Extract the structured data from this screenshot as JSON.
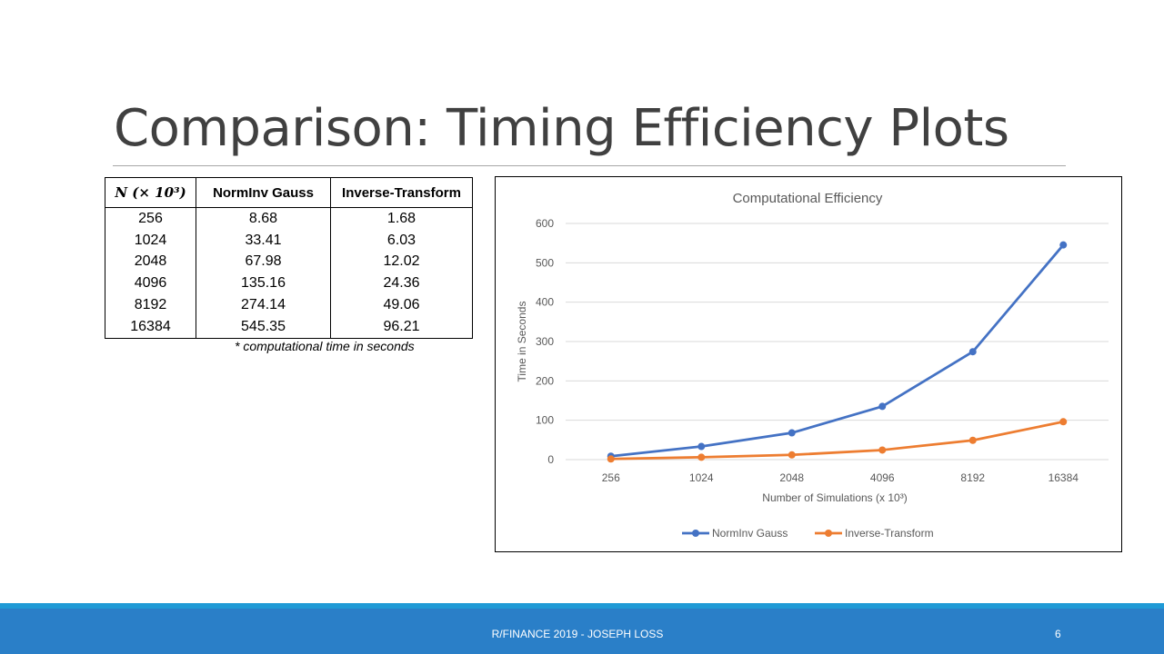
{
  "slide": {
    "title": "Comparison: Timing Efficiency Plots",
    "footnote": "* computational time in seconds",
    "footer_text": "R/FINANCE 2019 - JOSEPH LOSS",
    "page_number": "6"
  },
  "table": {
    "headers": [
      "N (× 10³)",
      "NormInv Gauss",
      "Inverse-Transform"
    ],
    "rows": [
      [
        "256",
        "8.68",
        "1.68"
      ],
      [
        "1024",
        "33.41",
        "6.03"
      ],
      [
        "2048",
        "67.98",
        "12.02"
      ],
      [
        "4096",
        "135.16",
        "24.36"
      ],
      [
        "8192",
        "274.14",
        "49.06"
      ],
      [
        "16384",
        "545.35",
        "96.21"
      ]
    ]
  },
  "colors": {
    "series_1": "#4472c4",
    "series_2": "#ed7d31",
    "gridline": "#d9d9d9",
    "footer_bar": "#2a7fc8"
  },
  "chart_data": {
    "type": "line",
    "title": "Computational Efficiency",
    "xlabel": "Number of Simulations (x 10³)",
    "ylabel": "Time in Seconds",
    "categories": [
      "256",
      "1024",
      "2048",
      "4096",
      "8192",
      "16384"
    ],
    "ylim": [
      0,
      600
    ],
    "yticks": [
      0,
      100,
      200,
      300,
      400,
      500,
      600
    ],
    "grid": true,
    "legend_position": "bottom",
    "series": [
      {
        "name": "NormInv Gauss",
        "values": [
          8.68,
          33.41,
          67.98,
          135.16,
          274.14,
          545.35
        ]
      },
      {
        "name": "Inverse-Transform",
        "values": [
          1.68,
          6.03,
          12.02,
          24.36,
          49.06,
          96.21
        ]
      }
    ]
  }
}
